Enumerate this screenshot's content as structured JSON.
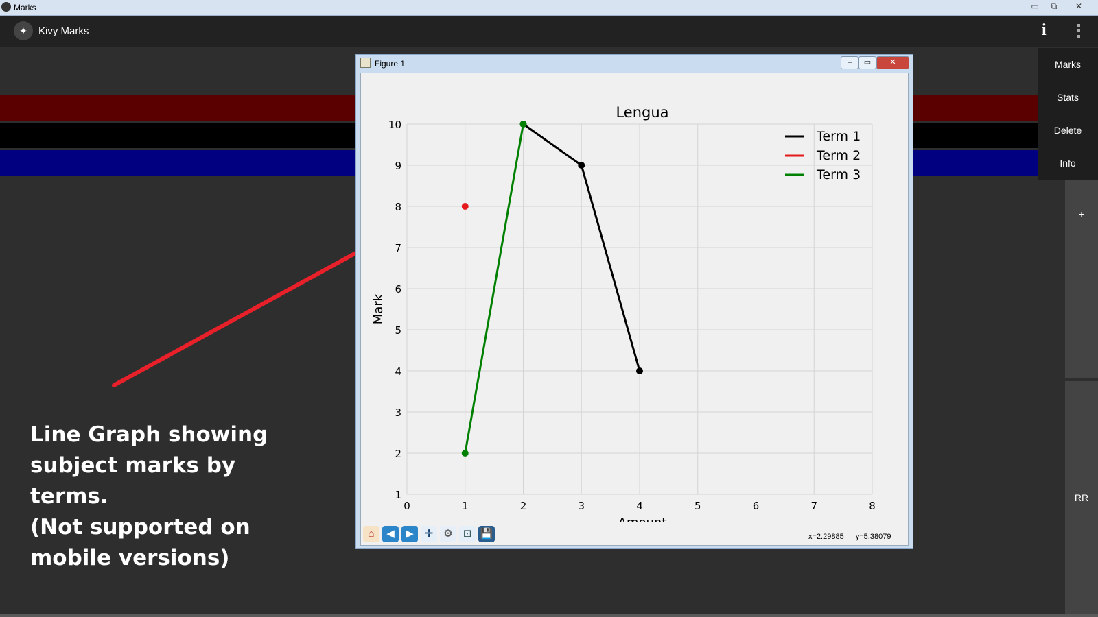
{
  "window": {
    "title": "Marks",
    "min_label": "▭",
    "max_label": "⧉",
    "close_label": "✕"
  },
  "app": {
    "title": "Kivy Marks",
    "info_label": "i"
  },
  "bands": {
    "colors": [
      "#5a0000",
      "#000000",
      "#000080"
    ]
  },
  "menu": {
    "items": [
      "Marks",
      "Stats",
      "Delete",
      "Info"
    ]
  },
  "sidebar": {
    "add_label": "+",
    "rr_label": "RR"
  },
  "figure": {
    "title": "Figure 1",
    "toolbar": {
      "icons": [
        "home-icon",
        "back-icon",
        "forward-icon",
        "pan-icon",
        "configure-icon",
        "zoom-icon",
        "save-icon"
      ],
      "glyphs": [
        "⌂",
        "◀",
        "▶",
        "✛",
        "⚙",
        "⊡",
        "💾"
      ]
    },
    "coord_x": "x=2.29885",
    "coord_y": "y=5.38079"
  },
  "caption": "Line Graph showing\nsubject marks by terms.\n(Not supported on\nmobile versions)",
  "chart_data": {
    "type": "line",
    "title": "Lengua",
    "xlabel": "Amount",
    "ylabel": "Mark",
    "xlim": [
      0,
      8
    ],
    "ylim": [
      1,
      10
    ],
    "xticks": [
      "0",
      "1",
      "2",
      "3",
      "4",
      "5",
      "6",
      "7",
      "8"
    ],
    "yticks": [
      "1",
      "2",
      "3",
      "4",
      "5",
      "6",
      "7",
      "8",
      "9",
      "10"
    ],
    "grid": true,
    "legend_position": "top-right",
    "series": [
      {
        "name": "Term 1",
        "color": "#000000",
        "x": [
          2,
          3,
          4
        ],
        "y": [
          10,
          9,
          4
        ]
      },
      {
        "name": "Term 2",
        "color": "#e41a1c",
        "x": [
          1
        ],
        "y": [
          8
        ]
      },
      {
        "name": "Term 3",
        "color": "#008000",
        "x": [
          1,
          2
        ],
        "y": [
          2,
          10
        ]
      }
    ]
  }
}
